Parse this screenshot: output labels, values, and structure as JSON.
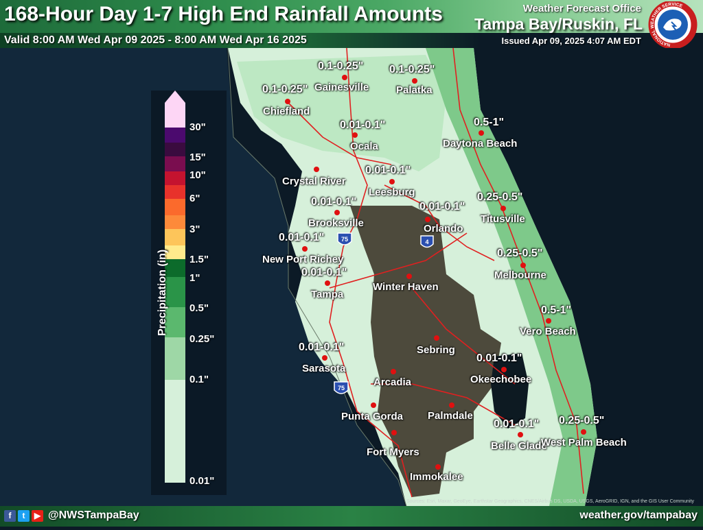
{
  "header": {
    "title": "168-Hour Day 1-7 High End Rainfall Amounts",
    "valid": "Valid 8:00 AM Wed Apr 09 2025 - 8:00 AM Wed Apr 16 2025",
    "office": "Weather Forecast Office",
    "location": "Tampa Bay/Ruskin, FL",
    "issued": "Issued Apr 09, 2025 4:07 AM EDT",
    "logo_text": "NATIONAL WEATHER SERVICE"
  },
  "legend": {
    "title": "Precipitation (in)",
    "ticks": [
      "30\"",
      "15\"",
      "10\"",
      "6\"",
      "3\"",
      "1.5\"",
      "1\"",
      "0.5\"",
      "0.25\"",
      "0.1\"",
      "0.01\""
    ],
    "colors": [
      "#fdd6f5",
      "#4b0a6e",
      "#7a0d4f",
      "#c4132f",
      "#e8322b",
      "#fb6a2c",
      "#fda446",
      "#ffeb8c",
      "#0c6b2b",
      "#3aa257",
      "#7ec98a",
      "#bde8c3",
      "#d6f0da"
    ]
  },
  "map": {
    "colors": {
      "ocean": "#0c1a26",
      "gulf": "#12283b",
      "land_dark": "#4d4a3c",
      "rain_lightest": "#d6f0da",
      "rain_light": "#bde8c3",
      "rain_medium": "#7ec98a",
      "roads": "#e02020",
      "city_dot": "#e01010"
    },
    "interstates": [
      {
        "number": "75",
        "label_role": "shield"
      },
      {
        "number": "4",
        "label_role": "shield"
      },
      {
        "number": "75",
        "label_role": "shield"
      }
    ],
    "cities": [
      {
        "name": "Gainesville",
        "value": "0.1-0.25\""
      },
      {
        "name": "Palatka",
        "value": "0.1-0.25\""
      },
      {
        "name": "Chiefland",
        "value": "0.1-0.25\""
      },
      {
        "name": "Ocala",
        "value": "0.01-0.1\""
      },
      {
        "name": "Daytona Beach",
        "value": "0.5-1\""
      },
      {
        "name": "Crystal River",
        "value": ""
      },
      {
        "name": "Leesburg",
        "value": "0.01-0.1\""
      },
      {
        "name": "Brooksville",
        "value": "0.01-0.1\""
      },
      {
        "name": "Orlando",
        "value": "0.01-0.1\""
      },
      {
        "name": "Titusville",
        "value": "0.25-0.5\""
      },
      {
        "name": "New Port Richey",
        "value": "0.01-0.1\""
      },
      {
        "name": "Melbourne",
        "value": "0.25-0.5\""
      },
      {
        "name": "Tampa",
        "value": "0.01-0.1\""
      },
      {
        "name": "Winter Haven",
        "value": ""
      },
      {
        "name": "Vero Beach",
        "value": "0.5-1\""
      },
      {
        "name": "Sebring",
        "value": ""
      },
      {
        "name": "Sarasota",
        "value": "0.01-0.1\""
      },
      {
        "name": "Arcadia",
        "value": ""
      },
      {
        "name": "Okeechobee",
        "value": "0.01-0.1\""
      },
      {
        "name": "Punta Gorda",
        "value": ""
      },
      {
        "name": "Palmdale",
        "value": ""
      },
      {
        "name": "Belle Glade",
        "value": "0.01-0.1\""
      },
      {
        "name": "West Palm Beach",
        "value": "0.25-0.5\""
      },
      {
        "name": "Fort Myers",
        "value": ""
      },
      {
        "name": "Immokalee",
        "value": ""
      }
    ]
  },
  "footer": {
    "handle": "@NWSTampaBay",
    "website": "weather.gov/tampabay",
    "attribution": "Sources: Esri, Maxar, GeoEye, Earthstar Geographics, CNES/Airbus DS, USDA, USGS, AeroGRID, IGN, and the GIS User Community",
    "social_icons": [
      "facebook-icon",
      "twitter-icon",
      "youtube-icon"
    ]
  }
}
